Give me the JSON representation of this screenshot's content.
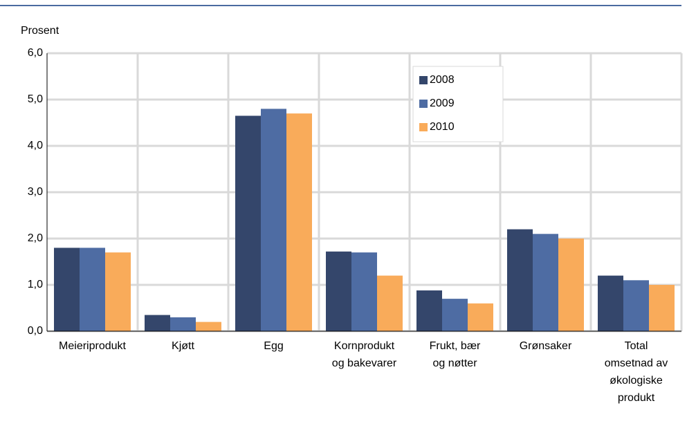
{
  "chart_data": {
    "type": "bar",
    "y_label": "Prosent",
    "categories": [
      "Meieriprodukt",
      "Kjøtt",
      "Egg",
      "Kornprodukt\nog bakevarer",
      "Frukt, bær\nog nøtter",
      "Grønsaker",
      "Total\nomsetnad av\nøkologiske\nprodukt"
    ],
    "series": [
      {
        "name": "2008",
        "color": "#34466b",
        "values": [
          1.8,
          0.35,
          4.65,
          1.72,
          0.88,
          2.2,
          1.2
        ]
      },
      {
        "name": "2009",
        "color": "#4e6ca3",
        "values": [
          1.8,
          0.3,
          4.8,
          1.7,
          0.7,
          2.1,
          1.1
        ]
      },
      {
        "name": "2010",
        "color": "#f9ab5a",
        "values": [
          1.7,
          0.2,
          4.7,
          1.2,
          0.6,
          2.0,
          1.0
        ]
      }
    ],
    "ylim": [
      0,
      6
    ],
    "yticks": [
      {
        "value": 0,
        "label": "0,0"
      },
      {
        "value": 1,
        "label": "1,0"
      },
      {
        "value": 2,
        "label": "2,0"
      },
      {
        "value": 3,
        "label": "3,0"
      },
      {
        "value": 4,
        "label": "4,0"
      },
      {
        "value": 5,
        "label": "5,0"
      },
      {
        "value": 6,
        "label": "6,0"
      }
    ],
    "grid": true,
    "legend": "upper-right"
  }
}
